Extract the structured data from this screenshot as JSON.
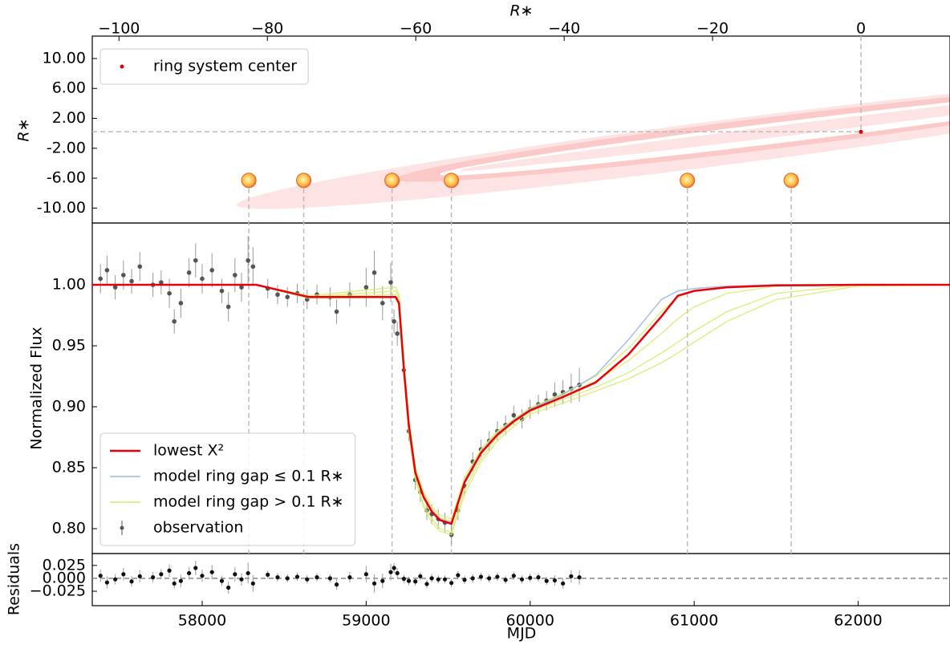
{
  "chart_data": [
    {
      "type": "scatter",
      "xlabel": "R∗",
      "ylabel": "R∗",
      "xlim": [
        -103.6,
        12
      ],
      "xticks": [
        {
          "value": -100,
          "label": "−100"
        },
        {
          "value": -80,
          "label": "−80"
        },
        {
          "value": -60,
          "label": "−60"
        },
        {
          "value": -40,
          "label": "−40"
        },
        {
          "value": -20,
          "label": "−20"
        },
        0
      ],
      "ylim": [
        -12,
        13
      ],
      "yticks": [
        {
          "value": 10,
          "label": "10.00"
        },
        {
          "value": 6,
          "label": "6.00"
        },
        {
          "value": 2,
          "label": "2.00"
        },
        {
          "value": -2,
          "label": "-2.00"
        },
        {
          "value": -6,
          "label": "-6.00"
        },
        {
          "value": -10,
          "label": "-10.00"
        }
      ],
      "legend": "upper left",
      "series": [
        {
          "name": "ring system center",
          "color": "#e00000",
          "x": [
            0
          ],
          "values": [
            0.2
          ]
        }
      ],
      "stars": {
        "x": [
          -82.5,
          -75.1,
          -63.2,
          -55.2,
          -23.4,
          -9.4
        ],
        "values": [
          -6.3,
          -6.3,
          -6.3,
          -6.3,
          -6.3,
          -6.3
        ]
      }
    },
    {
      "type": "line",
      "ylabel": "Normalized Flux",
      "xlim": [
        57330,
        62560
      ],
      "ylim": [
        0.7796,
        1.0507
      ],
      "yticks": [
        {
          "value": 1.0,
          "label": "1.00"
        },
        0.95,
        {
          "value": 0.9,
          "label": "0.90"
        },
        0.85,
        {
          "value": 0.8,
          "label": "0.80"
        }
      ],
      "legend": "lower left",
      "x": [
        57330,
        58330,
        58650,
        59180,
        59200,
        59230,
        59260,
        59300,
        59350,
        59400,
        59450,
        59520,
        59600,
        59700,
        59800,
        59900,
        60000,
        60200,
        60400,
        60600,
        60800,
        60900,
        61000,
        61200,
        61500,
        62000,
        62560
      ],
      "series": [
        {
          "name": "lowest X²",
          "color": "#e8000b",
          "values": [
            1.0,
            1.0,
            0.99,
            0.99,
            0.985,
            0.931,
            0.885,
            0.846,
            0.826,
            0.814,
            0.807,
            0.804,
            0.838,
            0.862,
            0.877,
            0.888,
            0.897,
            0.908,
            0.92,
            0.943,
            0.974,
            0.991,
            0.995,
            0.998,
            0.9995,
            1.0,
            1.0
          ]
        },
        {
          "name": "model ring gap ≤ 0.1 R∗",
          "color": "#9fb7e0",
          "curves": [
            [
              1.0,
              1.0,
              0.99,
              0.99,
              0.985,
              0.932,
              0.886,
              0.847,
              0.827,
              0.815,
              0.808,
              0.805,
              0.839,
              0.863,
              0.878,
              0.889,
              0.898,
              0.91,
              0.926,
              0.955,
              0.988,
              0.995,
              0.997,
              0.999,
              1.0,
              1.0,
              1.0
            ]
          ]
        },
        {
          "name": "model ring gap > 0.1 R∗",
          "color": "#d8ea6a",
          "curves": [
            [
              1.0,
              1.0,
              0.99,
              0.992,
              0.987,
              0.93,
              0.88,
              0.842,
              0.82,
              0.808,
              0.8,
              0.797,
              0.832,
              0.858,
              0.875,
              0.887,
              0.896,
              0.906,
              0.916,
              0.928,
              0.944,
              0.953,
              0.962,
              0.978,
              0.993,
              1.0,
              1.0
            ],
            [
              1.0,
              1.0,
              0.99,
              0.995,
              0.99,
              0.935,
              0.887,
              0.848,
              0.828,
              0.816,
              0.809,
              0.806,
              0.84,
              0.864,
              0.879,
              0.889,
              0.898,
              0.909,
              0.921,
              0.938,
              0.96,
              0.972,
              0.982,
              0.993,
              0.999,
              1.0,
              1.0
            ],
            [
              1.0,
              1.0,
              0.991,
              0.998,
              0.992,
              0.94,
              0.89,
              0.85,
              0.83,
              0.818,
              0.811,
              0.808,
              0.842,
              0.865,
              0.88,
              0.89,
              0.899,
              0.911,
              0.925,
              0.948,
              0.978,
              0.99,
              0.995,
              0.998,
              1.0,
              1.0,
              1.0
            ],
            [
              1.0,
              1.0,
              0.989,
              0.99,
              0.983,
              0.925,
              0.878,
              0.84,
              0.818,
              0.805,
              0.798,
              0.795,
              0.828,
              0.855,
              0.872,
              0.884,
              0.894,
              0.903,
              0.913,
              0.923,
              0.936,
              0.944,
              0.953,
              0.97,
              0.988,
              0.999,
              1.0
            ]
          ]
        },
        {
          "name": "observation",
          "color": "#555555",
          "x": [
            57380,
            57420,
            57470,
            57520,
            57570,
            57620,
            57700,
            57750,
            57800,
            57830,
            57870,
            57920,
            57960,
            58000,
            58060,
            58120,
            58160,
            58200,
            58240,
            58280,
            58310,
            58400,
            58460,
            58520,
            58580,
            58640,
            58700,
            58780,
            58820,
            58900,
            59000,
            59050,
            59100,
            59150,
            59170,
            59190,
            59230,
            59260,
            59300,
            59330,
            59370,
            59400,
            59440,
            59480,
            59520,
            59560,
            59600,
            59650,
            59700,
            59750,
            59800,
            59850,
            59900,
            59950,
            60000,
            60050,
            60100,
            60150,
            60200,
            60250,
            60300
          ],
          "values": [
            1.005,
            1.012,
            0.998,
            1.008,
            1.003,
            1.015,
            1.0,
            1.002,
            0.993,
            0.97,
            0.985,
            1.01,
            1.02,
            1.005,
            1.012,
            0.995,
            0.982,
            1.008,
            0.998,
            1.02,
            1.015,
            0.997,
            0.992,
            0.99,
            0.993,
            0.988,
            0.992,
            0.99,
            0.978,
            0.992,
            0.998,
            1.01,
            0.985,
            1.002,
            0.97,
            0.96,
            0.93,
            0.88,
            0.84,
            0.83,
            0.815,
            0.812,
            0.808,
            0.805,
            0.795,
            0.815,
            0.835,
            0.855,
            0.865,
            0.872,
            0.88,
            0.885,
            0.893,
            0.89,
            0.898,
            0.902,
            0.905,
            0.91,
            0.912,
            0.915,
            0.918
          ],
          "errors": [
            0.012,
            0.012,
            0.01,
            0.012,
            0.01,
            0.012,
            0.01,
            0.01,
            0.012,
            0.01,
            0.012,
            0.012,
            0.014,
            0.012,
            0.014,
            0.01,
            0.012,
            0.014,
            0.012,
            0.02,
            0.016,
            0.008,
            0.008,
            0.008,
            0.008,
            0.008,
            0.008,
            0.008,
            0.01,
            0.01,
            0.016,
            0.018,
            0.014,
            0.016,
            0.01,
            0.01,
            0.008,
            0.008,
            0.008,
            0.008,
            0.008,
            0.008,
            0.008,
            0.008,
            0.008,
            0.008,
            0.008,
            0.008,
            0.008,
            0.008,
            0.008,
            0.008,
            0.008,
            0.008,
            0.008,
            0.008,
            0.008,
            0.01,
            0.01,
            0.012,
            0.014
          ]
        }
      ]
    },
    {
      "type": "scatter",
      "ylabel": "Residuals",
      "xlabel": "MJD",
      "xlim": [
        57330,
        62560
      ],
      "xticks": [
        58000,
        59000,
        60000,
        61000,
        62000
      ],
      "ylim": [
        -0.053,
        0.048
      ],
      "yticks": [
        0.025,
        {
          "value": 0,
          "label": "0.000"
        },
        {
          "value": -0.025,
          "label": "−0.025"
        }
      ],
      "x": [
        57380,
        57420,
        57470,
        57520,
        57570,
        57620,
        57700,
        57750,
        57800,
        57830,
        57870,
        57920,
        57960,
        58000,
        58060,
        58120,
        58160,
        58200,
        58240,
        58280,
        58310,
        58400,
        58460,
        58520,
        58580,
        58640,
        58700,
        58780,
        58820,
        58900,
        59000,
        59050,
        59100,
        59150,
        59170,
        59190,
        59230,
        59260,
        59300,
        59330,
        59370,
        59400,
        59440,
        59480,
        59520,
        59560,
        59600,
        59650,
        59700,
        59750,
        59800,
        59850,
        59900,
        59950,
        60000,
        60050,
        60100,
        60150,
        60200,
        60250,
        60300
      ],
      "values": [
        0.005,
        -0.008,
        -0.002,
        0.008,
        -0.006,
        0.004,
        0.002,
        0.008,
        0.015,
        -0.01,
        -0.005,
        0.01,
        0.02,
        0.005,
        0.012,
        -0.005,
        -0.018,
        0.008,
        -0.002,
        0.01,
        -0.01,
        0.007,
        0.002,
        0.0,
        0.003,
        -0.002,
        0.002,
        0.0,
        -0.012,
        0.002,
        0.008,
        -0.01,
        -0.005,
        0.012,
        0.02,
        0.01,
        -0.001,
        -0.005,
        -0.006,
        0.004,
        -0.011,
        0.0,
        -0.002,
        -0.002,
        -0.009,
        0.006,
        -0.003,
        0.0,
        0.003,
        0.0,
        0.003,
        -0.003,
        0.005,
        -0.002,
        0.001,
        0.002,
        -0.005,
        -0.004,
        -0.01,
        0.004,
        0.002
      ],
      "errors": [
        0.012,
        0.012,
        0.01,
        0.012,
        0.01,
        0.012,
        0.01,
        0.01,
        0.012,
        0.01,
        0.012,
        0.012,
        0.014,
        0.012,
        0.014,
        0.01,
        0.012,
        0.014,
        0.012,
        0.02,
        0.016,
        0.008,
        0.008,
        0.008,
        0.008,
        0.008,
        0.008,
        0.008,
        0.01,
        0.01,
        0.016,
        0.018,
        0.014,
        0.016,
        0.01,
        0.01,
        0.008,
        0.008,
        0.008,
        0.008,
        0.008,
        0.008,
        0.008,
        0.008,
        0.008,
        0.008,
        0.008,
        0.008,
        0.008,
        0.008,
        0.008,
        0.008,
        0.008,
        0.008,
        0.008,
        0.008,
        0.008,
        0.01,
        0.01,
        0.012,
        0.014
      ]
    }
  ]
}
